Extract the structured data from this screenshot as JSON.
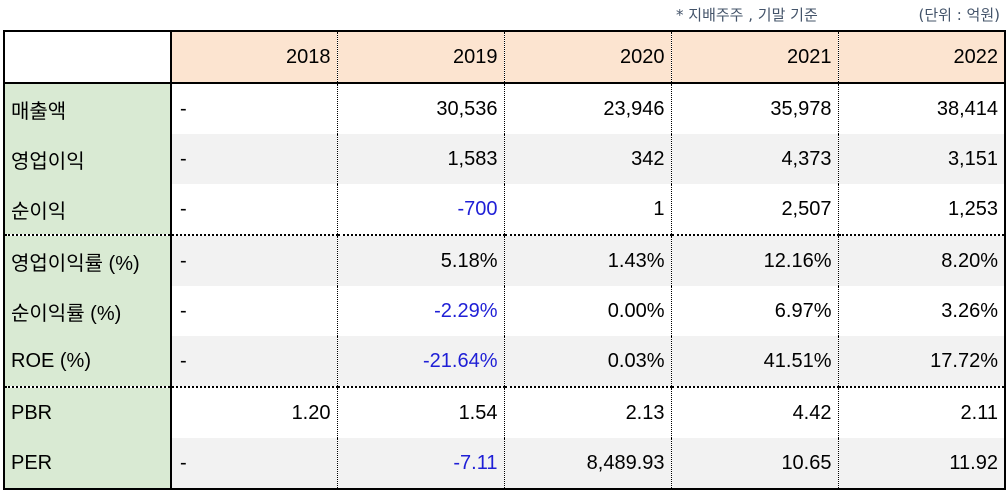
{
  "notes": {
    "basis": "* 지배주주 , 기말 기준",
    "unit": "(단위 : 억원)"
  },
  "colors": {
    "header_bg": "#fce4d0",
    "label_bg": "#d9ead3",
    "stripe_bg": "#f2f2f2",
    "negative": "#1f1fd6"
  },
  "table": {
    "corner": "",
    "years": [
      "2018",
      "2019",
      "2020",
      "2021",
      "2022"
    ],
    "rows": [
      {
        "label": "매출액",
        "cells": [
          "-",
          "30,536",
          "23,946",
          "35,978",
          "38,414"
        ]
      },
      {
        "label": "영업이익",
        "cells": [
          "-",
          "1,583",
          "342",
          "4,373",
          "3,151"
        ]
      },
      {
        "label": "순이익",
        "cells": [
          "-",
          "-700",
          "1",
          "2,507",
          "1,253"
        ]
      },
      {
        "label": "영업이익률 (%)",
        "cells": [
          "-",
          "5.18%",
          "1.43%",
          "12.16%",
          "8.20%"
        ]
      },
      {
        "label": "순이익률 (%)",
        "cells": [
          "-",
          "-2.29%",
          "0.00%",
          "6.97%",
          "3.26%"
        ]
      },
      {
        "label": "ROE (%)",
        "cells": [
          "-",
          "-21.64%",
          "0.03%",
          "41.51%",
          "17.72%"
        ]
      },
      {
        "label": "PBR",
        "cells": [
          "1.20",
          "1.54",
          "2.13",
          "4.42",
          "2.11"
        ]
      },
      {
        "label": "PER",
        "cells": [
          "-",
          "-7.11",
          "8,489.93",
          "10.65",
          "11.92"
        ]
      }
    ]
  }
}
